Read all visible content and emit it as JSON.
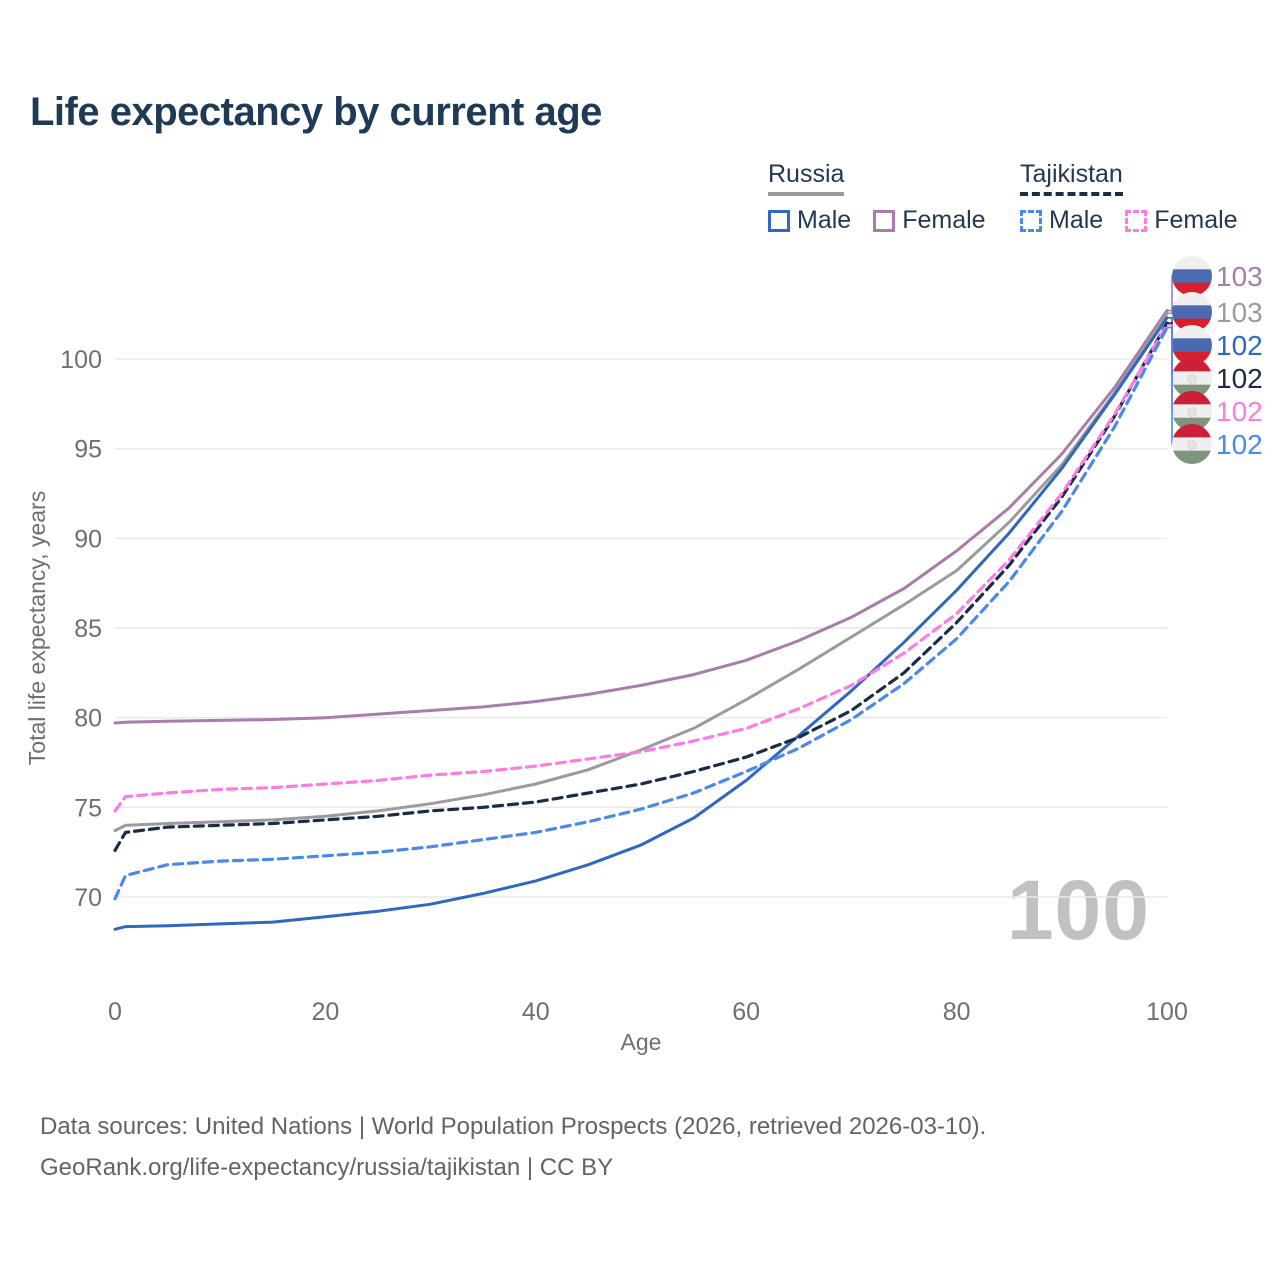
{
  "header": {
    "title": "Life expectancy by current age"
  },
  "legend": {
    "groups": [
      {
        "country": "Russia",
        "line_color": "#9b9b9b",
        "line_style": "solid",
        "items": [
          {
            "label": "Male",
            "color": "#2e68c0",
            "line_style": "solid"
          },
          {
            "label": "Female",
            "color": "#a97cab",
            "line_style": "solid"
          }
        ]
      },
      {
        "country": "Tajikistan",
        "line_color": "#1b2c47",
        "line_style": "dashed",
        "items": [
          {
            "label": "Male",
            "color": "#4a89ec",
            "line_style": "dashed"
          },
          {
            "label": "Female",
            "color": "#fb7ce3",
            "line_style": "dashed"
          }
        ]
      }
    ]
  },
  "flags": {
    "Russia": {
      "stripes": [
        "#efefef",
        "#4c6ab2",
        "#d8202c"
      ],
      "emblem": false
    },
    "Tajikistan": {
      "stripes": [
        "#cb2038",
        "#efefef",
        "#7f937f"
      ],
      "emblem": true
    }
  },
  "chart_data": {
    "type": "line",
    "title": "Life expectancy by current age",
    "xlabel": "Age",
    "ylabel": "Total life expectancy, years",
    "xlim": [
      0,
      100
    ],
    "ylim": [
      67,
      104
    ],
    "x_ticks": [
      0,
      20,
      40,
      60,
      80,
      100
    ],
    "y_ticks": [
      70,
      75,
      80,
      85,
      90,
      95,
      100
    ],
    "grid": "horizontal",
    "age_indicator": "100",
    "ages": [
      0,
      1,
      5,
      10,
      15,
      20,
      25,
      30,
      35,
      40,
      45,
      50,
      55,
      60,
      65,
      70,
      75,
      80,
      85,
      90,
      95,
      100
    ],
    "series": [
      {
        "name": "Russia Female",
        "country": "Russia",
        "sex": "Female",
        "color": "#a97cab",
        "line_style": "solid",
        "end_label": "103",
        "values": [
          79.7,
          79.75,
          79.8,
          79.85,
          79.9,
          80.0,
          80.2,
          80.4,
          80.6,
          80.9,
          81.3,
          81.8,
          82.4,
          83.2,
          84.3,
          85.6,
          87.2,
          89.3,
          91.7,
          94.7,
          98.4,
          102.7
        ]
      },
      {
        "name": "Russia Both sexes",
        "country": "Russia",
        "sex": "Both sexes",
        "color": "#9b9b9b",
        "line_style": "solid",
        "end_label": "103",
        "values": [
          73.7,
          74.0,
          74.1,
          74.2,
          74.3,
          74.5,
          74.8,
          75.2,
          75.7,
          76.3,
          77.1,
          78.2,
          79.4,
          81.0,
          82.7,
          84.5,
          86.3,
          88.2,
          90.9,
          94.1,
          98.1,
          102.55
        ]
      },
      {
        "name": "Russia Male",
        "country": "Russia",
        "sex": "Male",
        "color": "#2e68c0",
        "line_style": "solid",
        "end_label": "102",
        "values": [
          68.2,
          68.35,
          68.4,
          68.5,
          68.6,
          68.9,
          69.2,
          69.6,
          70.2,
          70.9,
          71.8,
          72.9,
          74.4,
          76.5,
          79.0,
          81.5,
          84.2,
          87.1,
          90.3,
          93.9,
          98.0,
          102.3
        ]
      },
      {
        "name": "Tajikistan Both sexes",
        "country": "Tajikistan",
        "sex": "Both sexes",
        "color": "#1b2c47",
        "line_style": "dashed",
        "end_label": "102",
        "values": [
          72.6,
          73.6,
          73.9,
          74.0,
          74.1,
          74.3,
          74.5,
          74.8,
          75.0,
          75.3,
          75.8,
          76.3,
          77.0,
          77.8,
          78.9,
          80.4,
          82.5,
          85.3,
          88.5,
          92.3,
          96.8,
          102.0
        ]
      },
      {
        "name": "Tajikistan Female",
        "country": "Tajikistan",
        "sex": "Female",
        "color": "#fb7ce3",
        "line_style": "dashed",
        "end_label": "102",
        "values": [
          74.8,
          75.6,
          75.8,
          76.0,
          76.1,
          76.3,
          76.5,
          76.8,
          77.0,
          77.3,
          77.7,
          78.1,
          78.7,
          79.4,
          80.5,
          81.8,
          83.6,
          85.8,
          88.8,
          92.5,
          96.9,
          101.9
        ]
      },
      {
        "name": "Tajikistan Male",
        "country": "Tajikistan",
        "sex": "Male",
        "color": "#4a89ec",
        "line_style": "dashed",
        "end_label": "102",
        "values": [
          69.9,
          71.2,
          71.8,
          72.0,
          72.1,
          72.3,
          72.5,
          72.8,
          73.2,
          73.6,
          74.2,
          74.9,
          75.8,
          77.0,
          78.3,
          79.9,
          81.9,
          84.4,
          87.6,
          91.5,
          96.2,
          101.75
        ]
      }
    ]
  },
  "footer": {
    "line1": "Data sources: United Nations | World Population Prospects (2026, retrieved 2026-03-10).",
    "line2": "GeoRank.org/life-expectancy/russia/tajikistan | CC BY"
  }
}
